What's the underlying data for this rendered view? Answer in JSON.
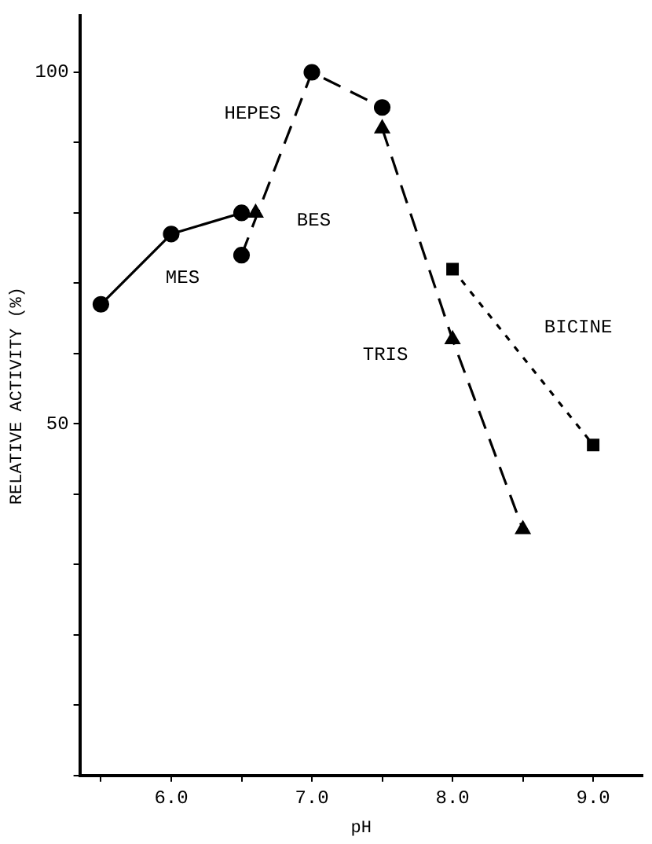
{
  "chart_data": {
    "type": "line",
    "xlabel": "pH",
    "ylabel": "RELATIVE ACTIVITY (%)",
    "xlim": [
      5.35,
      9.35
    ],
    "xticks": [
      {
        "value": 5.5,
        "label": null
      },
      {
        "value": 6.0,
        "label": "6.0"
      },
      {
        "value": 6.5,
        "label": null
      },
      {
        "value": 7.0,
        "label": "7.0"
      },
      {
        "value": 7.5,
        "label": null
      },
      {
        "value": 8.0,
        "label": "8.0"
      },
      {
        "value": 8.5,
        "label": null
      },
      {
        "value": 9.0,
        "label": "9.0"
      }
    ],
    "ylim": [
      0,
      108
    ],
    "yticks": [
      {
        "value": 0,
        "label": null
      },
      {
        "value": 10,
        "label": null
      },
      {
        "value": 20,
        "label": null
      },
      {
        "value": 30,
        "label": null
      },
      {
        "value": 40,
        "label": null
      },
      50,
      {
        "value": 60,
        "label": null
      },
      {
        "value": 70,
        "label": null
      },
      {
        "value": 80,
        "label": null
      },
      {
        "value": 90,
        "label": null
      },
      100
    ],
    "grid": false,
    "legend": false,
    "series": [
      {
        "name": "MES",
        "color": "#000000",
        "x": [
          5.5,
          6.0,
          6.5
        ],
        "values": [
          67,
          77,
          80
        ],
        "marker": "circle",
        "line_style": "solid"
      },
      {
        "name": "HEPES",
        "color": "#000000",
        "x": [
          6.5,
          7.0,
          7.5
        ],
        "values": [
          74,
          100,
          95
        ],
        "marker": "circle",
        "line_style": "dashed"
      },
      {
        "name": "BES",
        "color": "#000000",
        "x": [
          6.6
        ],
        "values": [
          80
        ],
        "marker": "triangle",
        "line_style": "solid"
      },
      {
        "name": "TRIS",
        "color": "#000000",
        "x": [
          7.5,
          8.0,
          8.5
        ],
        "values": [
          92,
          62,
          35
        ],
        "marker": "triangle",
        "line_style": "dashed"
      },
      {
        "name": "BICINE",
        "color": "#000000",
        "x": [
          8.0,
          9.0
        ],
        "values": [
          72,
          47
        ],
        "marker": "square",
        "line_style": "dotted"
      }
    ]
  }
}
